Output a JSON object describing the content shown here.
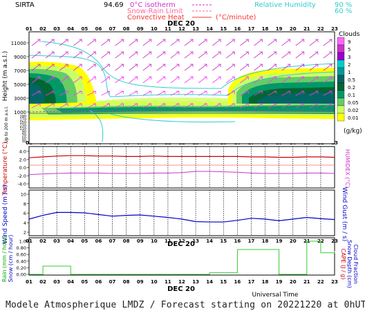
{
  "header": {
    "site": "SIRTA",
    "coords": "94.69",
    "isotherm_label": "0°C isotherm",
    "snow_rain_label": "Snow-Rain Limit",
    "convective_label": "Convective Heat",
    "unit_label": "(°C/minute)",
    "rh_label": "Relative Humidity",
    "rh90": "90 %",
    "rh60": "60 %"
  },
  "footer": "Modele Atmospherique LMDZ / Forecast starting on 20221220 at 0hUT",
  "hour_ticks": [
    "01",
    "02",
    "03",
    "04",
    "05",
    "06",
    "07",
    "08",
    "09",
    "10",
    "11",
    "12",
    "13",
    "14",
    "15",
    "16",
    "17",
    "18",
    "19",
    "20",
    "21",
    "22",
    "23"
  ],
  "date_label": "DEC 20",
  "ut_label": "Universal Time",
  "panel1": {
    "ylabel": "Height (m a.s.l.)",
    "ylabel2": "Up to 200 m a.s.l.",
    "yticks": [
      "11000",
      "9000",
      "7000",
      "5000",
      "3000",
      "1000"
    ],
    "yticks_low": [
      "190",
      "170",
      "150",
      "130",
      "110",
      "90",
      "70",
      "50",
      "30"
    ]
  },
  "clouds": {
    "title": "Clouds",
    "levels": [
      "9",
      "5",
      "3",
      "2",
      "1",
      "0.5",
      "0.2",
      "0.1",
      "0.05",
      "0.02",
      "0.01"
    ],
    "unit": "(g/kg)",
    "colors": [
      "#ff66ff",
      "#cc33cc",
      "#9900cc",
      "#00cccc",
      "#009999",
      "#006666",
      "#006633",
      "#009966",
      "#66cc66",
      "#ccff66",
      "#ffff00"
    ]
  },
  "panel2": {
    "ylabel": "Temperature (°C)",
    "ylabel_right": "HUMIDEX (°C)",
    "yticks": [
      "4.0",
      "2.0",
      "0.0",
      "-2.0",
      "-4.0"
    ]
  },
  "panel3": {
    "ylabel": "Wind Speed (m / s)",
    "ylabel_right": "Wind Gust (m / s)",
    "yticks": [
      "10",
      "8",
      "6",
      "4",
      "2"
    ]
  },
  "panel4": {
    "ylabel_a": "Rain (mm / hour)",
    "ylabel_b": "Snow (cm / hour)",
    "ylabel_right_a": "CAPE (J / g)",
    "ylabel_right_b": "Snow Depth (cm)",
    "ylabel_right_c": "Cloud Fraction",
    "yticks": [
      "1.0",
      "0.80",
      "0.60",
      "0.40",
      "0.20",
      "0.00"
    ]
  },
  "chart_data": [
    {
      "type": "line",
      "panel": "temperature",
      "x": [
        1,
        2,
        3,
        4,
        5,
        6,
        7,
        8,
        9,
        10,
        11,
        12,
        13,
        14,
        15,
        16,
        17,
        18,
        19,
        20,
        21,
        22,
        23
      ],
      "ylim": [
        -5,
        5
      ],
      "series": [
        {
          "values": [
            2.3,
            2.5,
            2.7,
            2.8,
            2.8,
            2.7,
            2.7,
            2.6,
            2.6,
            2.7,
            2.6,
            2.6,
            2.6,
            2.6,
            2.6,
            2.6,
            2.5,
            2.5,
            2.4,
            2.4,
            2.5,
            2.5,
            2.4
          ]
        },
        {
          "values": [
            -1.8,
            -1.6,
            -1.5,
            -1.4,
            -1.4,
            -1.4,
            -1.5,
            -1.5,
            -1.5,
            -1.4,
            -1.4,
            -1.3,
            -1.0,
            -1.0,
            -1.1,
            -1.2,
            -1.4,
            -1.5,
            -1.5,
            -1.5,
            -1.4,
            -1.4,
            -1.5
          ]
        }
      ]
    },
    {
      "type": "line",
      "panel": "wind",
      "x": [
        1,
        2,
        3,
        4,
        5,
        6,
        7,
        8,
        9,
        10,
        11,
        12,
        13,
        14,
        15,
        16,
        17,
        18,
        19,
        20,
        21,
        22,
        23
      ],
      "ylim": [
        0,
        11
      ],
      "series": [
        {
          "values": [
            4.0,
            4.9,
            5.6,
            5.6,
            5.5,
            5.1,
            4.7,
            4.9,
            5.0,
            4.7,
            4.4,
            4.0,
            3.4,
            3.3,
            3.3,
            3.7,
            4.2,
            4.0,
            3.6,
            4.0,
            4.4,
            4.1,
            3.9
          ]
        }
      ]
    },
    {
      "type": "line",
      "panel": "precip-cloudfraction",
      "x": [
        1,
        2,
        3,
        4,
        5,
        6,
        7,
        8,
        9,
        10,
        11,
        12,
        13,
        14,
        15,
        16,
        17,
        18,
        19,
        20,
        21,
        22,
        23
      ],
      "ylim": [
        0,
        1
      ],
      "series": [
        {
          "values": [
            0,
            0.25,
            0.25,
            0,
            0,
            0,
            0,
            0,
            0,
            0,
            0,
            0,
            0,
            0.05,
            0.05,
            0.75,
            0.75,
            0.75,
            0,
            0,
            1.0,
            0.65,
            0.7
          ]
        }
      ]
    }
  ]
}
